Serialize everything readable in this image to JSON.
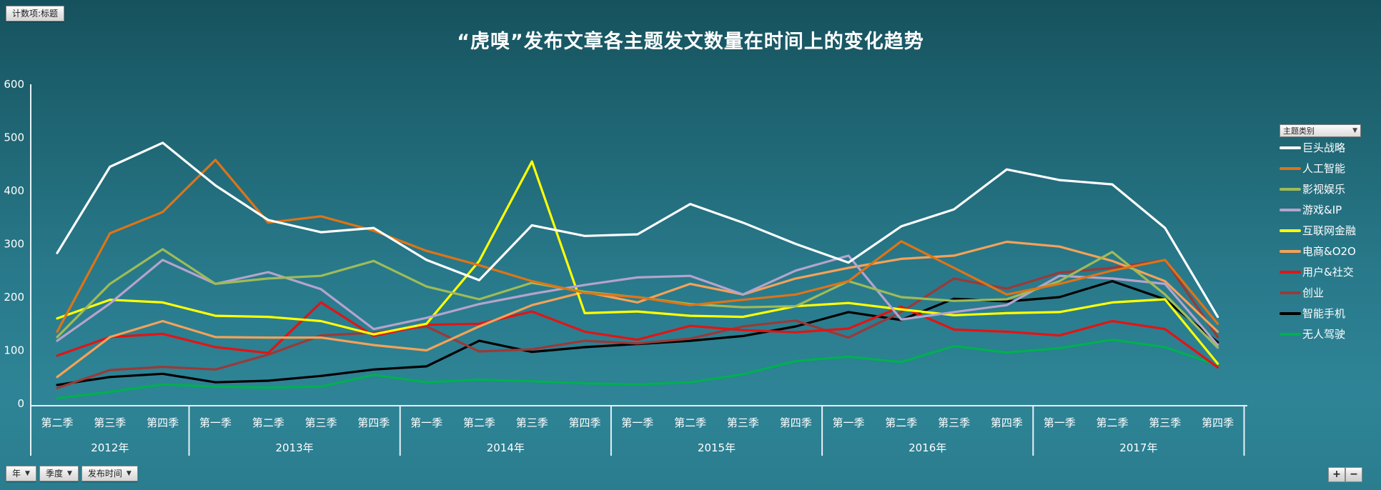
{
  "window": {
    "pivot_field_button": "计数项:标题"
  },
  "title": "“虎嗅”发布文章各主题发文数量在时间上的变化趋势",
  "legend": {
    "dropdown_label": "主题类别"
  },
  "axis_filters": {
    "year": "年",
    "quarter": "季度",
    "publish_time": "发布时间"
  },
  "zoom_buttons": {
    "plus": "+",
    "minus": "−"
  },
  "chart_data": {
    "type": "line",
    "title": "“虎嗅”发布文章各主题发文数量在时间上的变化趋势",
    "xlabel": "",
    "ylabel": "",
    "ylim": [
      0,
      600
    ],
    "ytick_step": 100,
    "grid": false,
    "legend_position": "right",
    "years": [
      {
        "label": "2012年",
        "quarters": [
          "第二季",
          "第三季",
          "第四季"
        ]
      },
      {
        "label": "2013年",
        "quarters": [
          "第一季",
          "第二季",
          "第三季",
          "第四季"
        ]
      },
      {
        "label": "2014年",
        "quarters": [
          "第一季",
          "第二季",
          "第三季",
          "第四季"
        ]
      },
      {
        "label": "2015年",
        "quarters": [
          "第一季",
          "第二季",
          "第三季",
          "第四季"
        ]
      },
      {
        "label": "2016年",
        "quarters": [
          "第一季",
          "第二季",
          "第三季",
          "第四季"
        ]
      },
      {
        "label": "2017年",
        "quarters": [
          "第一季",
          "第二季",
          "第三季",
          "第四季"
        ]
      }
    ],
    "series": [
      {
        "name": "巨头战略",
        "color": "#ffffff",
        "values": [
          283,
          445,
          490,
          410,
          345,
          322,
          330,
          270,
          232,
          335,
          315,
          318,
          375,
          340,
          300,
          265,
          333,
          365,
          440,
          420,
          412,
          330,
          163
        ]
      },
      {
        "name": "人工智能",
        "color": "#df7416",
        "values": [
          135,
          320,
          360,
          458,
          340,
          352,
          325,
          287,
          260,
          230,
          208,
          200,
          185,
          195,
          205,
          230,
          305,
          255,
          205,
          225,
          250,
          270,
          150
        ]
      },
      {
        "name": "影视娱乐",
        "color": "#9fbb58",
        "values": [
          125,
          225,
          290,
          225,
          235,
          240,
          268,
          220,
          196,
          227,
          210,
          200,
          187,
          181,
          183,
          230,
          200,
          193,
          196,
          230,
          285,
          205,
          105
        ]
      },
      {
        "name": "游戏&IP",
        "color": "#b5a3cc",
        "values": [
          118,
          188,
          270,
          225,
          247,
          215,
          140,
          161,
          187,
          206,
          223,
          237,
          240,
          205,
          250,
          278,
          158,
          172,
          185,
          240,
          235,
          225,
          110
        ]
      },
      {
        "name": "互联网金融",
        "color": "#ffff00",
        "values": [
          160,
          195,
          190,
          165,
          163,
          155,
          130,
          150,
          268,
          455,
          170,
          173,
          165,
          163,
          183,
          189,
          177,
          166,
          170,
          172,
          190,
          196,
          75
        ]
      },
      {
        "name": "电商&O2O",
        "color": "#f4a258",
        "values": [
          50,
          125,
          155,
          125,
          124,
          124,
          110,
          100,
          145,
          185,
          210,
          190,
          225,
          205,
          235,
          255,
          272,
          278,
          304,
          295,
          268,
          230,
          135
        ]
      },
      {
        "name": "用户&社交",
        "color": "#e21414",
        "values": [
          90,
          125,
          131,
          106,
          95,
          190,
          127,
          148,
          150,
          173,
          135,
          120,
          146,
          138,
          134,
          141,
          182,
          139,
          135,
          128,
          155,
          140,
          68
        ]
      },
      {
        "name": "创业",
        "color": "#9a3a38",
        "values": [
          29,
          63,
          69,
          64,
          92,
          128,
          133,
          145,
          98,
          102,
          118,
          113,
          122,
          145,
          156,
          124,
          172,
          235,
          216,
          246,
          255,
          270,
          125
        ]
      },
      {
        "name": "智能手机",
        "color": "#000000",
        "values": [
          35,
          50,
          56,
          40,
          43,
          52,
          64,
          70,
          118,
          97,
          106,
          112,
          118,
          127,
          145,
          172,
          157,
          197,
          192,
          200,
          230,
          196,
          115
        ]
      },
      {
        "name": "无人驾驶",
        "color": "#00b050",
        "values": [
          10,
          22,
          36,
          32,
          30,
          32,
          54,
          40,
          45,
          42,
          38,
          36,
          40,
          55,
          80,
          88,
          78,
          108,
          96,
          104,
          120,
          106,
          72
        ]
      }
    ]
  }
}
